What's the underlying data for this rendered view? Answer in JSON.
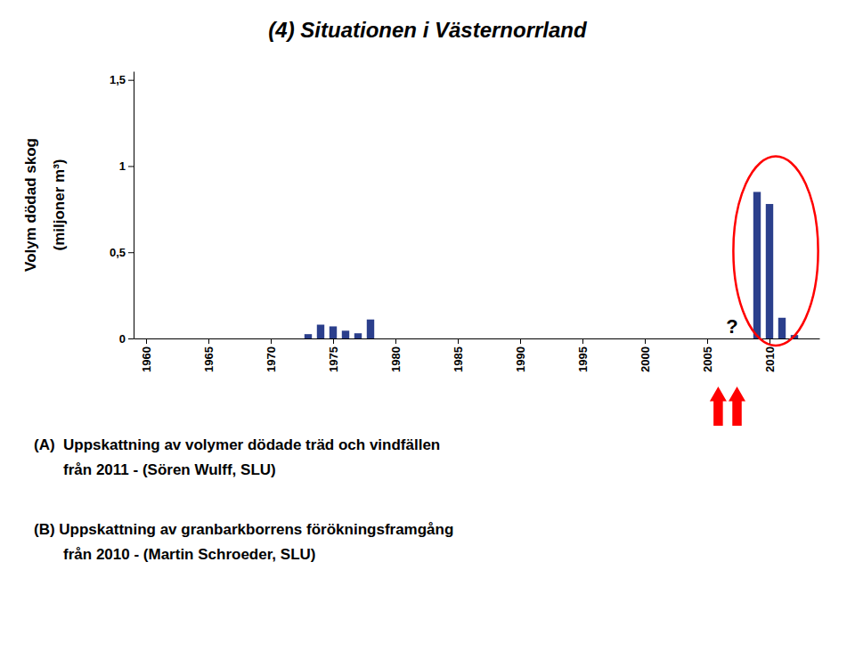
{
  "chart_data": {
    "type": "bar",
    "title": "(4) Situationen i Västernorrland",
    "ylabel": [
      "Volym dödad skog",
      "(miljoner m³)"
    ],
    "x": [
      1973,
      1974,
      1975,
      1976,
      1977,
      1978,
      2009,
      2010,
      2011,
      2012
    ],
    "values": [
      0.025,
      0.08,
      0.07,
      0.045,
      0.03,
      0.11,
      0.85,
      0.78,
      0.12,
      0.02
    ],
    "color": "#2b3f8c",
    "xlim": [
      1959,
      2014
    ],
    "xticks": [
      1960,
      1965,
      1970,
      1975,
      1980,
      1985,
      1990,
      1995,
      2000,
      2005,
      2010
    ],
    "ylim": [
      0,
      1.55
    ],
    "yticks": [
      0,
      {
        "value": 0.5,
        "label": "0,5"
      },
      1,
      {
        "value": 1.5,
        "label": "1,5"
      }
    ],
    "grid": false,
    "annotations": [
      {
        "text": "?",
        "x": 2007.0,
        "y": 0.03
      }
    ],
    "captions": [
      [
        "(A)  Uppskattning av volymer dödade träd och vindfällen",
        "       från 2011 - (Sören Wulff, SLU)"
      ],
      [
        "(B) Uppskattning av granbarkborrens förökningsframgång",
        "       från 2010 - (Martin Schroeder, SLU)"
      ]
    ]
  }
}
